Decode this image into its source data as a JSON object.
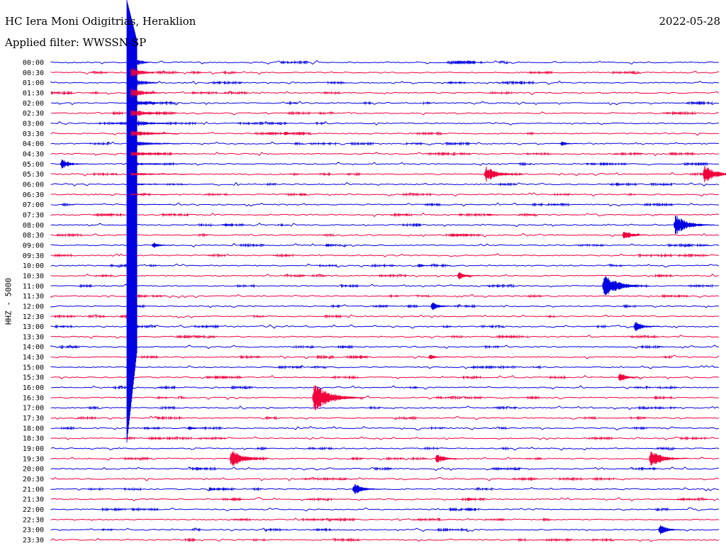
{
  "header": {
    "station": "HC Iera Moni Odigitrias, Heraklion",
    "date": "2022-05-28",
    "filter": "Applied filter: WWSSN-SP"
  },
  "chart_data": {
    "type": "line",
    "title": "HC Iera Moni Odigitrias, Heraklion",
    "ylabel": "HHZ - 5000",
    "trace_labels": [
      "00:00",
      "00:30",
      "01:00",
      "01:30",
      "02:00",
      "02:30",
      "03:00",
      "03:30",
      "04:00",
      "04:30",
      "05:00",
      "05:30",
      "06:00",
      "06:30",
      "07:00",
      "07:30",
      "08:00",
      "08:30",
      "09:00",
      "09:30",
      "10:00",
      "10:30",
      "11:00",
      "11:30",
      "12:00",
      "12:30",
      "13:00",
      "13:30",
      "14:00",
      "14:30",
      "15:00",
      "15:30",
      "16:00",
      "16:30",
      "17:00",
      "17:30",
      "18:00",
      "18:30",
      "19:00",
      "19:30",
      "20:00",
      "20:30",
      "21:00",
      "21:30",
      "22:00",
      "22:30",
      "23:00",
      "23:30"
    ],
    "colors": [
      "#0000e0",
      "#f0003c"
    ],
    "major_event": {
      "trace": "00:00",
      "minute": 3.4,
      "extends_through": "18:30"
    },
    "events": [
      {
        "trace": "03:30",
        "minute": 10.4,
        "amp": 0.18
      },
      {
        "trace": "04:00",
        "minute": 22.8,
        "amp": 0.25
      },
      {
        "trace": "05:00",
        "minute": 0.4,
        "amp": 0.5
      },
      {
        "trace": "05:30",
        "minute": 19.4,
        "amp": 0.8
      },
      {
        "trace": "05:30",
        "minute": 29.2,
        "amp": 0.9
      },
      {
        "trace": "07:30",
        "minute": 19.5,
        "amp": 0.15
      },
      {
        "trace": "08:00",
        "minute": 27.9,
        "amp": 1.0
      },
      {
        "trace": "08:30",
        "minute": 25.6,
        "amp": 0.5
      },
      {
        "trace": "09:00",
        "minute": 4.5,
        "amp": 0.3
      },
      {
        "trace": "10:00",
        "minute": 16.4,
        "amp": 0.2
      },
      {
        "trace": "10:30",
        "minute": 18.2,
        "amp": 0.4
      },
      {
        "trace": "11:00",
        "minute": 24.7,
        "amp": 1.2
      },
      {
        "trace": "12:00",
        "minute": 17.0,
        "amp": 0.4
      },
      {
        "trace": "13:00",
        "minute": 26.1,
        "amp": 0.5
      },
      {
        "trace": "14:30",
        "minute": 16.9,
        "amp": 0.25
      },
      {
        "trace": "15:30",
        "minute": 25.4,
        "amp": 0.45
      },
      {
        "trace": "16:30",
        "minute": 11.7,
        "amp": 1.4
      },
      {
        "trace": "18:00",
        "minute": 6.1,
        "amp": 0.2
      },
      {
        "trace": "19:30",
        "minute": 8.0,
        "amp": 0.9
      },
      {
        "trace": "19:30",
        "minute": 17.2,
        "amp": 0.5
      },
      {
        "trace": "19:30",
        "minute": 26.8,
        "amp": 0.9
      },
      {
        "trace": "21:00",
        "minute": 13.5,
        "amp": 0.6
      },
      {
        "trace": "21:30",
        "minute": 18.6,
        "amp": 0.2
      },
      {
        "trace": "23:00",
        "minute": 27.2,
        "amp": 0.5
      }
    ]
  }
}
